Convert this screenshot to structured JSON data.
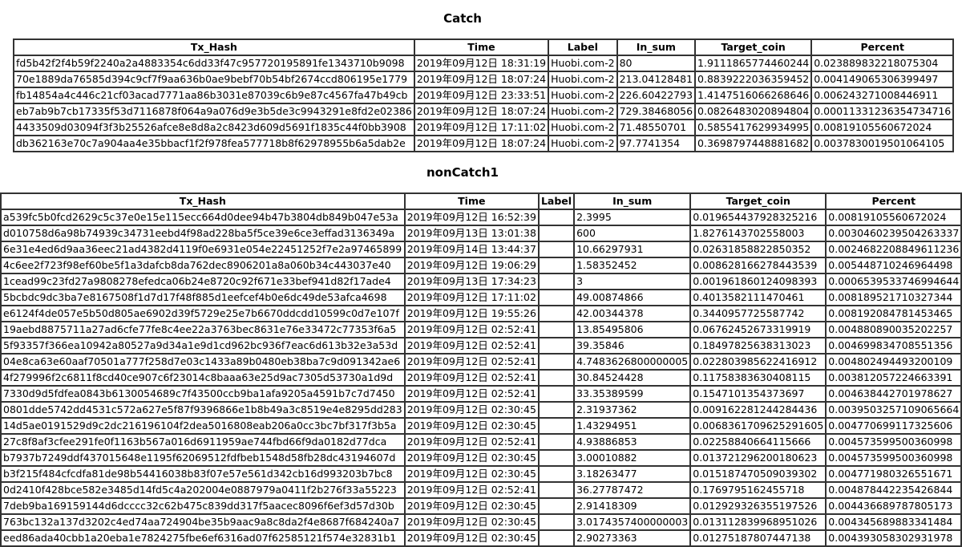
{
  "catch": {
    "title": "Catch",
    "columns": [
      "Tx_Hash",
      "Time",
      "Label",
      "In_sum",
      "Target_coin",
      "Percent"
    ],
    "rows": [
      [
        "fd5b42f2f4b59f2240a2a4883354c6dd33f47c957720195891fe1343710b9098",
        "2019年09月12日 18:31:19",
        "Huobi.com-2",
        "80",
        "1.9111865774460244",
        "0.023889832218075304"
      ],
      [
        "70e1889da76585d394c9cf7f9aa636b0ae9bebf70b54bf2674ccd806195e1779",
        "2019年09月12日 18:07:24",
        "Huobi.com-2",
        "213.04128481",
        "0.8839222036359452",
        "0.004149065306399497"
      ],
      [
        "fb14854a4c446c21cf03acad7771aa86b3031e87039c6b9e87c4567fa47b49cb",
        "2019年09月12日 23:33:51",
        "Huobi.com-2",
        "226.60422793",
        "1.4147516066268646",
        "0.006243271008446911"
      ],
      [
        "eb7ab9b7cb17335f53d7116878f064a9a076d9e3b5de3c9943291e8fd2e02386",
        "2019年09月12日 18:07:24",
        "Huobi.com-2",
        "729.38468056",
        "0.0826483020894804",
        "0.00011331236354734716"
      ],
      [
        "4433509d03094f3f3b25526afce8e8d8a2c8423d609d5691f1835c44f0bb3908",
        "2019年09月12日 17:11:02",
        "Huobi.com-2",
        "71.48550701",
        "0.5855417629934995",
        "0.00819105560672024"
      ],
      [
        "db362163e70c7a904aa4e35bbacf1f2f978fea577718b8f62978955b6a5dab2e",
        "2019年09月12日 18:07:24",
        "Huobi.com-2",
        "97.7741354",
        "0.3698797448881682",
        "0.0037830019501064105"
      ]
    ]
  },
  "noncatch": {
    "title": "nonCatch1",
    "columns": [
      "Tx_Hash",
      "Time",
      "Label",
      "In_sum",
      "Target_coin",
      "Percent"
    ],
    "rows": [
      [
        "a539fc5b0fcd2629c5c37e0e15e115ecc664d0dee94b47b3804db849b047e53a",
        "2019年09月12日 16:52:39",
        "",
        "2.3995",
        "0.019654437928325216",
        "0.00819105560672024"
      ],
      [
        "d010758d6a98b74939c34731eebd4f98ad228ba5f5ce39e6ce3effad3136349a",
        "2019年09月13日 13:01:38",
        "",
        "600",
        "1.8276143702558003",
        "0.0030460239504263337"
      ],
      [
        "6e31e4ed6d9aa36eec21ad4382d4119f0e6931e054e22451252f7e2a97465899",
        "2019年09月14日 13:44:37",
        "",
        "10.66297931",
        "0.02631858822850352",
        "0.0024682208849611236"
      ],
      [
        "4c6ee2f723f98ef60be5f1a3dafcb8da762dec8906201a8a060b34c443037e40",
        "2019年09月12日 19:06:29",
        "",
        "1.58352452",
        "0.008628166278443539",
        "0.005448710246964498"
      ],
      [
        "1cead99c23fd27a9808278efedca06b24e8720c92f671e33bef941d82f17ade4",
        "2019年09月13日 17:34:23",
        "",
        "3",
        "0.001961860124098393",
        "0.0006539533746994644"
      ],
      [
        "5bcbdc9dc3ba7e8167508f1d7d17f48f885d1eefcef4b0e6dc49de53afca4698",
        "2019年09月12日 17:11:02",
        "",
        "49.00874866",
        "0.4013582111470461",
        "0.008189521710327344"
      ],
      [
        "e6124f4de057e5b50d805ae6902d39f5729e25e7b6670ddcdd10599c0d7e107f",
        "2019年09月12日 19:55:26",
        "",
        "42.00344378",
        "0.3440957725587742",
        "0.008192084781453465"
      ],
      [
        "19aebd8875711a27ad6cfe77fe8c4ee22a3763bec8631e76e33472c77353f6a5",
        "2019年09月12日 02:52:41",
        "",
        "13.85495806",
        "0.06762452673319919",
        "0.004880890035202257"
      ],
      [
        "5f93357f366ea10942a80527a9d34a1e9d1cd962bc936f7eac6d613b32e3a53d",
        "2019年09月12日 02:52:41",
        "",
        "39.35846",
        "0.18497825638313023",
        "0.004699834708551356"
      ],
      [
        "04e8ca63e60aaf70501a777f258d7e03c1433a89b0480eb38ba7c9d091342ae6",
        "2019年09月12日 02:52:41",
        "",
        "4.7483626800000005",
        "0.022803985622416912",
        "0.004802494493200109"
      ],
      [
        "4f279996f2c6811f8cd40ce907c6f23014c8baaa63e25d9ac7305d53730a1d9d",
        "2019年09月12日 02:52:41",
        "",
        "30.84524428",
        "0.11758383630408115",
        "0.003812057224663391"
      ],
      [
        "7330d9d5fdfea0843b6130054689c7f43500ccb9ba1afa9205a4591b7c7d7450",
        "2019年09月12日 02:52:41",
        "",
        "33.35389599",
        "0.1547101354373697",
        "0.004638442701978627"
      ],
      [
        "0801dde5742dd4531c572a627e5f87f9396866e1b8b49a3c8519e4e8295dd283",
        "2019年09月12日 02:30:45",
        "",
        "2.31937362",
        "0.009162281244284436",
        "0.0039503257109065664"
      ],
      [
        "14d5ae0191529d9c2dc216196104f2dea5016808eab206a0cc3bc7bf317f3b5a",
        "2019年09月12日 02:30:45",
        "",
        "1.43294951",
        "0.0068361709625291605",
        "0.004770699117325606"
      ],
      [
        "27c8f8af3cfee291fe0f1163b567a016d6911959ae744fbd66f9da0182d77dca",
        "2019年09月12日 02:52:41",
        "",
        "4.93886853",
        "0.02258840664115666",
        "0.004573599500360998"
      ],
      [
        "b7937b7249ddf437015648e1195f62069512fdfbeb1548d58fb28dc43194607d",
        "2019年09月12日 02:30:45",
        "",
        "3.00010882",
        "0.013721296200180623",
        "0.004573599500360998"
      ],
      [
        "b3f215f484cfcdfa81de98b54416038b83f07e57e561d342cb16d993203b7bc8",
        "2019年09月12日 02:30:45",
        "",
        "3.18263477",
        "0.015187470509039302",
        "0.004771980326551671"
      ],
      [
        "0d2410f428bce582e3485d14fd5c4a202004e0887979a0411f2b276f33a55223",
        "2019年09月12日 02:52:41",
        "",
        "36.27787472",
        "0.1769795162455718",
        "0.004878442235426844"
      ],
      [
        "7deb9ba169159144d6dcccc32c62b475c839dd317f5aacec8096f6ef3d57d30b",
        "2019年09月12日 02:30:45",
        "",
        "2.91418309",
        "0.012929326355197526",
        "0.004436689787805173"
      ],
      [
        "763bc132a137d3202c4ed74aa724904be35b9aac9a8c8da2f4e8687f684240a7",
        "2019年09月12日 02:30:45",
        "",
        "3.0174357400000003",
        "0.013112839968951026",
        "0.004345689883341484"
      ],
      [
        "eed86ada40cbb1a20eba1e7824275fbe6ef6316ad07f62585121f574e32831b1",
        "2019年09月12日 02:30:45",
        "",
        "2.90273363",
        "0.01275187807447138",
        "0.004393058302931978"
      ]
    ]
  }
}
